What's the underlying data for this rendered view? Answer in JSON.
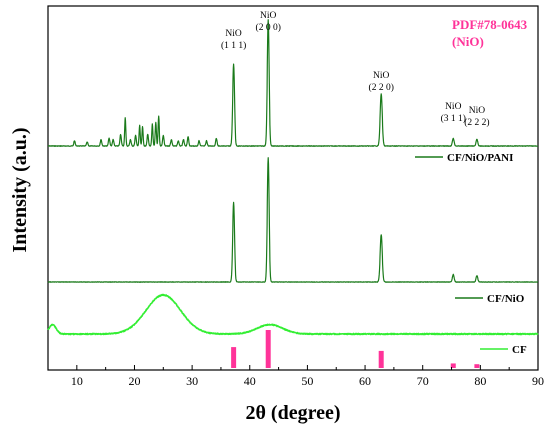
{
  "chart_data": {
    "type": "line",
    "xlabel": "2θ (degree)",
    "ylabel": "Intensity (a.u.)",
    "xlim": [
      5,
      90
    ],
    "x_ticks": [
      "10",
      "20",
      "30",
      "40",
      "50",
      "60",
      "70",
      "80",
      "90"
    ],
    "reference": {
      "label_line1": "PDF#78-0643",
      "label_line2": "(NiO)",
      "color": "#ff3399",
      "sticks": [
        {
          "x": 37.2,
          "h": 0.55
        },
        {
          "x": 43.2,
          "h": 1.0
        },
        {
          "x": 62.8,
          "h": 0.45
        },
        {
          "x": 75.3,
          "h": 0.12
        },
        {
          "x": 79.4,
          "h": 0.1
        }
      ]
    },
    "peak_labels": [
      {
        "name": "NiO",
        "hkl": "(1 1 1)",
        "x": 37.2
      },
      {
        "name": "NiO",
        "hkl": "(2 0 0)",
        "x": 43.2
      },
      {
        "name": "NiO",
        "hkl": "(2 2 0)",
        "x": 62.8
      },
      {
        "name": "NiO",
        "hkl": "(3 1 1)",
        "x": 75.3
      },
      {
        "name": "NiO",
        "hkl": "(2 2 2)",
        "x": 79.4
      }
    ],
    "series": [
      {
        "name": "CF/NiO/PANI",
        "color": "#1a7a1a",
        "baseline": 0.0,
        "peaks": [
          {
            "x": 9.6,
            "h": 0.04,
            "w": 0.12
          },
          {
            "x": 11.8,
            "h": 0.03,
            "w": 0.12
          },
          {
            "x": 14.2,
            "h": 0.05,
            "w": 0.12
          },
          {
            "x": 15.6,
            "h": 0.06,
            "w": 0.12
          },
          {
            "x": 16.3,
            "h": 0.05,
            "w": 0.12
          },
          {
            "x": 17.6,
            "h": 0.09,
            "w": 0.12
          },
          {
            "x": 18.4,
            "h": 0.22,
            "w": 0.1
          },
          {
            "x": 19.3,
            "h": 0.05,
            "w": 0.12
          },
          {
            "x": 20.2,
            "h": 0.08,
            "w": 0.12
          },
          {
            "x": 20.9,
            "h": 0.16,
            "w": 0.1
          },
          {
            "x": 21.4,
            "h": 0.15,
            "w": 0.1
          },
          {
            "x": 22.3,
            "h": 0.09,
            "w": 0.12
          },
          {
            "x": 23.1,
            "h": 0.17,
            "w": 0.1
          },
          {
            "x": 23.7,
            "h": 0.18,
            "w": 0.1
          },
          {
            "x": 24.2,
            "h": 0.23,
            "w": 0.1
          },
          {
            "x": 25.0,
            "h": 0.08,
            "w": 0.12
          },
          {
            "x": 26.4,
            "h": 0.05,
            "w": 0.12
          },
          {
            "x": 27.6,
            "h": 0.04,
            "w": 0.12
          },
          {
            "x": 28.5,
            "h": 0.05,
            "w": 0.12
          },
          {
            "x": 29.3,
            "h": 0.07,
            "w": 0.12
          },
          {
            "x": 31.2,
            "h": 0.04,
            "w": 0.12
          },
          {
            "x": 32.5,
            "h": 0.04,
            "w": 0.12
          },
          {
            "x": 34.2,
            "h": 0.06,
            "w": 0.12
          },
          {
            "x": 37.2,
            "h": 0.63,
            "w": 0.16
          },
          {
            "x": 43.2,
            "h": 0.97,
            "w": 0.16
          },
          {
            "x": 62.8,
            "h": 0.4,
            "w": 0.18
          },
          {
            "x": 75.3,
            "h": 0.06,
            "w": 0.15
          },
          {
            "x": 79.4,
            "h": 0.05,
            "w": 0.15
          }
        ]
      },
      {
        "name": "CF/NiO",
        "color": "#1a7a1a",
        "baseline": 0.0,
        "peaks": [
          {
            "x": 37.2,
            "h": 0.62,
            "w": 0.16
          },
          {
            "x": 43.2,
            "h": 0.97,
            "w": 0.16
          },
          {
            "x": 62.8,
            "h": 0.37,
            "w": 0.18
          },
          {
            "x": 75.3,
            "h": 0.06,
            "w": 0.15
          },
          {
            "x": 79.4,
            "h": 0.05,
            "w": 0.15
          }
        ]
      },
      {
        "name": "CF",
        "color": "#33ee33",
        "baseline": 0.0,
        "peaks": [
          {
            "x": 5.8,
            "h": 0.18,
            "w": 0.6
          },
          {
            "x": 25.0,
            "h": 0.75,
            "w": 3.0
          },
          {
            "x": 43.5,
            "h": 0.18,
            "w": 2.2
          }
        ]
      }
    ]
  }
}
